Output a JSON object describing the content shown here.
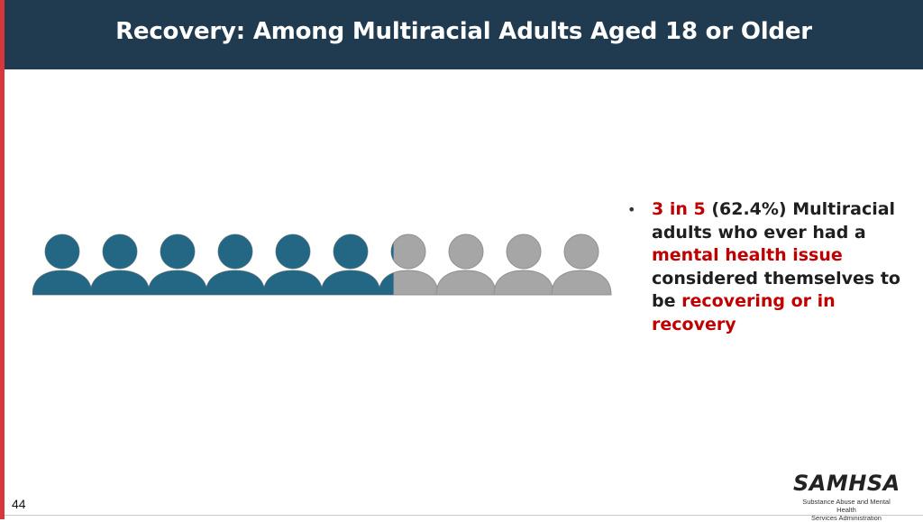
{
  "header": {
    "title": "Recovery: Among Multiracial Adults Aged 18 or Older"
  },
  "pictograph": {
    "total_people": 10,
    "highlighted_fraction": 0.624,
    "highlight_color": "#236785",
    "base_color": "#a6a6a6"
  },
  "bullet": {
    "marker": "•",
    "ratio": "3 in 5",
    "part1": " (62.4%) Multiracial adults who ever had a ",
    "issue": "mental health issue",
    "part2": " considered themselves to be ",
    "recovery": "recovering or in recovery"
  },
  "footer": {
    "page_number": "44",
    "logo_text": "SAMHSA",
    "logo_subtitle_line1": "Substance Abuse and Mental Health",
    "logo_subtitle_line2": "Services Administration"
  },
  "colors": {
    "header_bg": "#203a4f",
    "accent_red": "#c00000",
    "left_bar": "#d7373b"
  }
}
